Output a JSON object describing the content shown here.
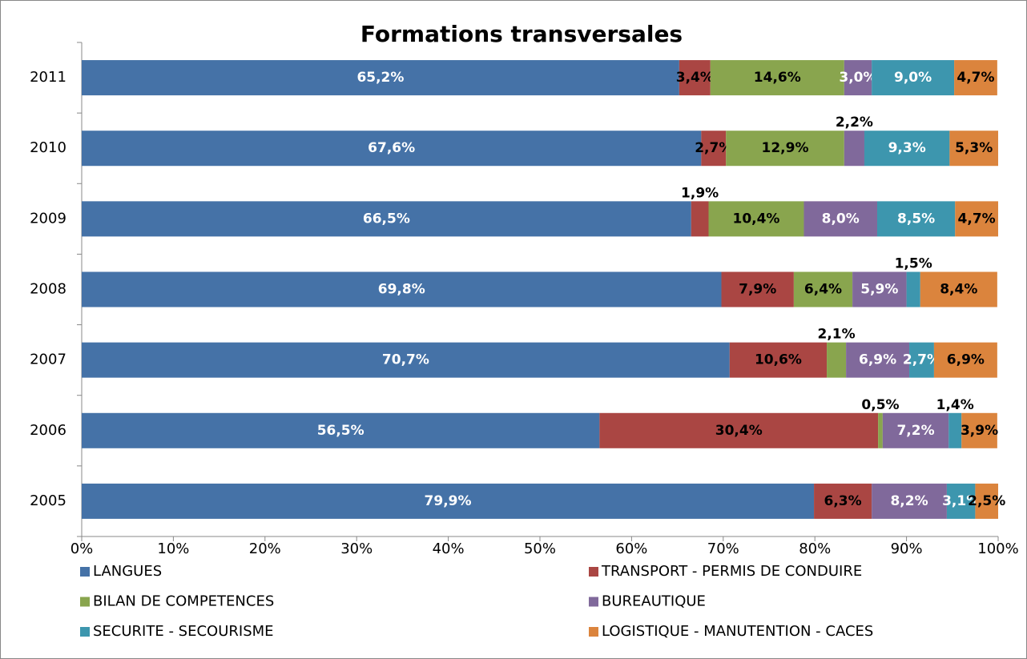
{
  "chart_data": {
    "type": "stacked-bar-horizontal",
    "title": "Formations transversales",
    "categories": [
      "2011",
      "2010",
      "2009",
      "2008",
      "2007",
      "2006",
      "2005"
    ],
    "series": [
      {
        "name": "LANGUES",
        "color": "#4572a7",
        "label_color": "#ffffff",
        "values": [
          65.2,
          67.6,
          66.5,
          69.8,
          70.7,
          56.5,
          79.9
        ],
        "value_labels": [
          "65,2%",
          "67,6%",
          "66,5%",
          "69,8%",
          "70,7%",
          "56,5%",
          "79,9%"
        ]
      },
      {
        "name": "TRANSPORT - PERMIS DE CONDUIRE",
        "color": "#aa4643",
        "label_color": "#000000",
        "values": [
          3.4,
          2.7,
          1.9,
          7.9,
          10.6,
          30.4,
          6.3
        ],
        "value_labels": [
          "3,4%",
          "2,7%",
          "1,9%",
          "7,9%",
          "10,6%",
          "30,4%",
          "6,3%"
        ]
      },
      {
        "name": "BILAN DE COMPETENCES",
        "color": "#89a54e",
        "label_color": "#000000",
        "values": [
          14.6,
          12.9,
          10.4,
          6.4,
          2.1,
          0.5,
          null
        ],
        "value_labels": [
          "14,6%",
          "12,9%",
          "10,4%",
          "6,4%",
          "2,1%",
          "0,5%",
          null
        ]
      },
      {
        "name": "BUREAUTIQUE",
        "color": "#80699b",
        "label_color": "#ffffff",
        "values": [
          3.0,
          2.2,
          8.0,
          5.9,
          6.9,
          7.2,
          8.2
        ],
        "value_labels": [
          "3,0%",
          "2,2%",
          "8,0%",
          "5,9%",
          "6,9%",
          "7,2%",
          "8,2%"
        ]
      },
      {
        "name": "SECURITE - SECOURISME",
        "color": "#3d96ae",
        "label_color": "#ffffff",
        "values": [
          9.0,
          9.3,
          8.5,
          1.5,
          2.7,
          1.4,
          3.1
        ],
        "value_labels": [
          "9,0%",
          "9,3%",
          "8,5%",
          "1,5%",
          "2,7%",
          "1,4%",
          "3,1%"
        ]
      },
      {
        "name": "LOGISTIQUE - MANUTENTION - CACES",
        "color": "#db843d",
        "label_color": "#000000",
        "values": [
          4.7,
          5.3,
          4.7,
          8.4,
          6.9,
          3.9,
          2.5
        ],
        "value_labels": [
          "4,7%",
          "5,3%",
          "4,7%",
          "8,4%",
          "6,9%",
          "3,9%",
          "2,5%"
        ]
      }
    ],
    "xlim": [
      0,
      100
    ],
    "xticks": [
      {
        "value": 0,
        "label": "0%"
      },
      {
        "value": 10,
        "label": "10%"
      },
      {
        "value": 20,
        "label": "20%"
      },
      {
        "value": 30,
        "label": "30%"
      },
      {
        "value": 40,
        "label": "40%"
      },
      {
        "value": 50,
        "label": "50%"
      },
      {
        "value": 60,
        "label": "60%"
      },
      {
        "value": 70,
        "label": "70%"
      },
      {
        "value": 80,
        "label": "80%"
      },
      {
        "value": 90,
        "label": "90%"
      },
      {
        "value": 100,
        "label": "100%"
      }
    ],
    "legend": "bottom"
  }
}
